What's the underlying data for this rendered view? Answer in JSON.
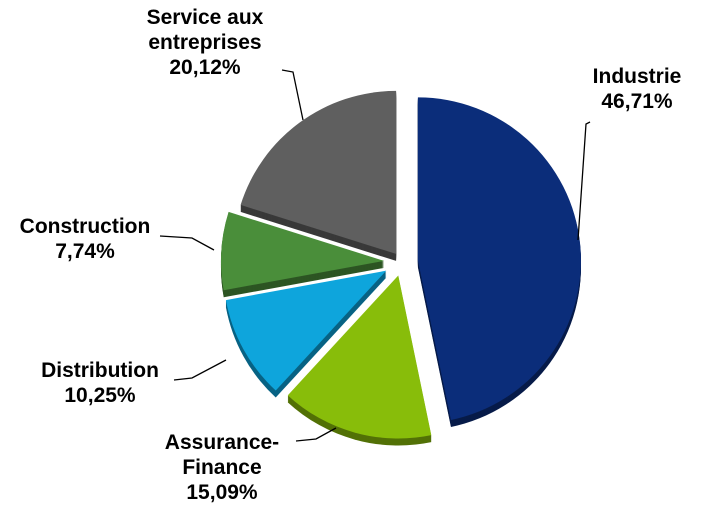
{
  "chart_data": {
    "type": "pie",
    "categories": [
      "Industrie",
      "Assurance-Finance",
      "Distribution",
      "Construction",
      "Service aux entreprises"
    ],
    "values": [
      46.71,
      15.09,
      10.25,
      7.74,
      20.12
    ],
    "value_labels": [
      "46,71%",
      "15,09%",
      "10,25%",
      "7,74%",
      "20,12%"
    ],
    "colors": [
      "#0b2d7a",
      "#88bd0a",
      "#0ea5dc",
      "#4a8e3a",
      "#5f5f5f"
    ]
  }
}
